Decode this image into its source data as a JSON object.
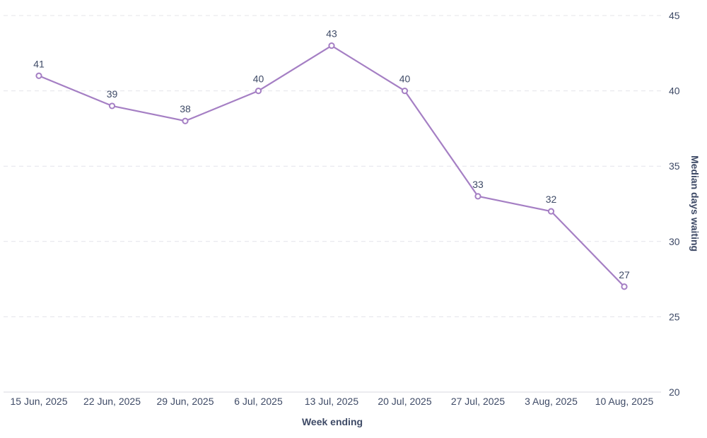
{
  "chart_data": {
    "type": "line",
    "title": "",
    "xlabel": "Week ending",
    "ylabel": "Median days waiting",
    "categories": [
      "15 Jun, 2025",
      "22 Jun, 2025",
      "29 Jun, 2025",
      "6 Jul, 2025",
      "13 Jul, 2025",
      "20 Jul, 2025",
      "27 Jul, 2025",
      "3 Aug, 2025",
      "10 Aug, 2025"
    ],
    "series": [
      {
        "values": [
          41,
          39,
          38,
          40,
          43,
          40,
          33,
          32,
          27
        ],
        "color": "#a57fc4"
      }
    ],
    "ylim": [
      20,
      45
    ],
    "yticks": [
      20,
      25,
      30,
      35,
      40,
      45
    ],
    "y_axis_side": "right",
    "grid": true,
    "data_labels": true,
    "legend": "none"
  }
}
